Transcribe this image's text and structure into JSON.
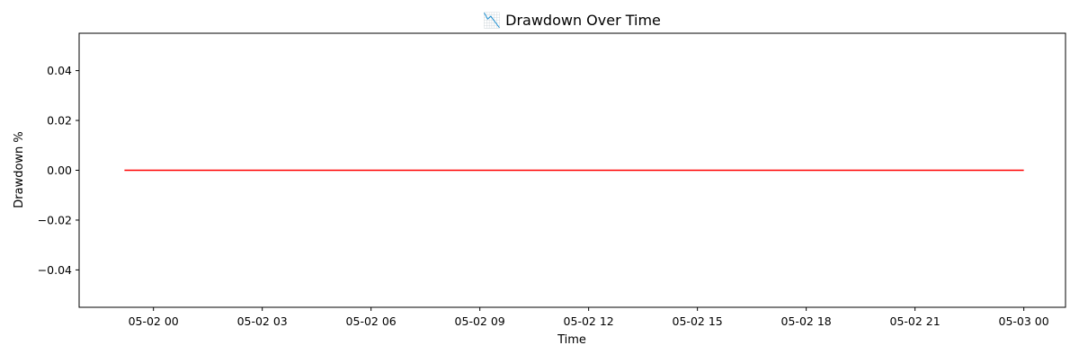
{
  "chart_data": {
    "type": "line",
    "title": "📉 Drawdown Over Time",
    "xlabel": "Time",
    "ylabel": "Drawdown %",
    "x_tick_labels": [
      "05-02 00",
      "05-02 03",
      "05-02 06",
      "05-02 09",
      "05-02 12",
      "05-02 15",
      "05-02 18",
      "05-02 21",
      "05-03 00"
    ],
    "x_tick_hours": [
      0,
      3,
      6,
      9,
      12,
      15,
      18,
      21,
      24
    ],
    "y_ticks": [
      {
        "value": 0.04,
        "label": "0.04"
      },
      {
        "value": 0.02,
        "label": "0.02"
      },
      {
        "value": 0.0,
        "label": "0.00"
      },
      {
        "value": -0.02,
        "label": "−0.02"
      },
      {
        "value": -0.04,
        "label": "−0.04"
      }
    ],
    "xlim_hours": [
      -2.05,
      25.15
    ],
    "ylim": [
      -0.055,
      0.055
    ],
    "grid": false,
    "legend": "none",
    "series": [
      {
        "color": "#ff0000",
        "x_hours": [
          -0.8,
          24.0
        ],
        "values": [
          0.0,
          0.0
        ]
      }
    ]
  }
}
